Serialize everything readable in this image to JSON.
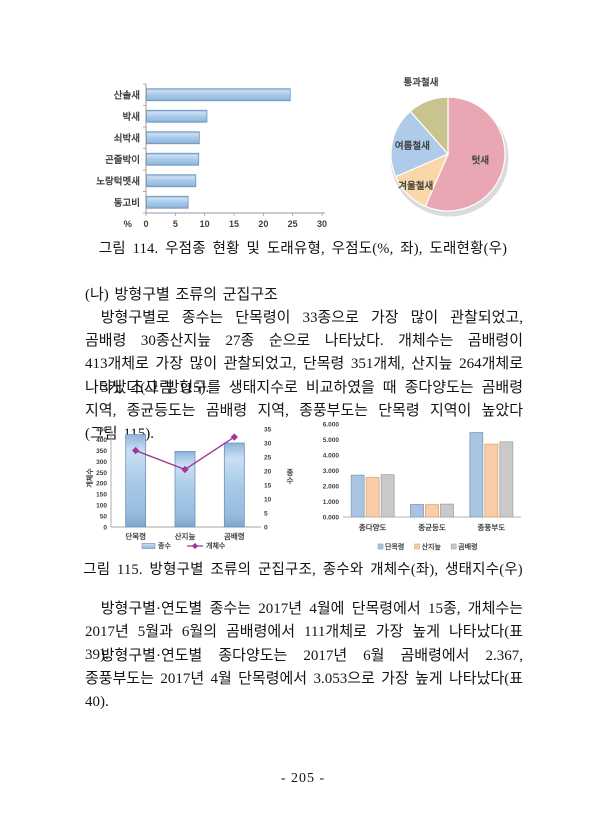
{
  "figure114": {
    "caption": "그림 114. 우점종 현황 및 도래유형, 우점도(%, 좌), 도래현황(우)"
  },
  "section": {
    "heading": "(나) 방형구별 조류의 군집구조",
    "para1": "방형구별로 종수는 단목령이 33종으로 가장 많이 관찰되었고, 곰배령 30종산지늪 27종 순으로 나타났다. 개체수는 곰배령이 413개체로 가장 많이 관찰되었고, 단목령 351개체, 산지늪 264개체로 나타났다(그림 115).",
    "para2": "3개 조사 방형구를 생태지수로 비교하였을 때 종다양도는 곰배령 지역, 종균등도는 곰배령 지역, 종풍부도는 단목령 지역이 높았다(그림 115).",
    "para3": "방형구별·연도별 종수는 2017년 4월에 단목령에서 15종, 개체수는 2017년 5월과 6월의 곰배령에서 111개체로 가장 높게 나타났다(표 39).",
    "para4": "방형구별·연도별 종다양도는 2017년 6월 곰배령에서 2.367, 종풍부도는 2017년 4월 단목령에서 3.053으로 가장 높게 나타났다(표 40)."
  },
  "figure115": {
    "caption": "그림 115. 방형구별 조류의 군집구조, 종수와 개체수(좌), 생태지수(우)"
  },
  "page_number": "- 205 -",
  "chart_data": [
    {
      "id": "dominance-bar",
      "type": "bar",
      "orientation": "horizontal",
      "title": "우점도(%)",
      "categories": [
        "산솔새",
        "박새",
        "쇠박새",
        "곤줄박이",
        "노랑턱멧새",
        "동고비"
      ],
      "values": [
        24.5,
        10.3,
        9.0,
        8.9,
        8.4,
        7.1
      ],
      "xlabel": "%",
      "xlim": [
        0,
        30
      ],
      "xticks": [
        0,
        5,
        10,
        15,
        20,
        25,
        30
      ],
      "bar_color": "#a9cbe8",
      "bar_border": "#6e93ba"
    },
    {
      "id": "migration-pie",
      "type": "pie",
      "title": "도래현황",
      "labels": [
        "텃새",
        "겨울철새",
        "여름철새",
        "통과철새"
      ],
      "values": [
        56.5,
        12.0,
        20.0,
        11.5
      ],
      "colors": [
        "#e9a7b4",
        "#fad7a8",
        "#aecbe9",
        "#c9c48f"
      ],
      "start_at_top_clockwise": true
    },
    {
      "id": "community-combo",
      "type": "bar-line-combo",
      "title": "종수와 개체수",
      "categories": [
        "단목령",
        "산지늪",
        "곰배령"
      ],
      "series": [
        {
          "name": "종수",
          "type": "bar",
          "axis": "right",
          "values": [
            33,
            27,
            30
          ]
        },
        {
          "name": "개체수",
          "type": "line",
          "axis": "left",
          "values": [
            351,
            264,
            413
          ]
        }
      ],
      "left_axis": {
        "label": "개체수",
        "min": 0,
        "max": 450,
        "step": 50
      },
      "right_axis": {
        "label": "종수",
        "min": 0,
        "max": 35,
        "step": 5
      },
      "bar_color": "#a9cbe8",
      "bar_border": "#6e93ba",
      "line_color": "#a03896"
    },
    {
      "id": "eco-index-grouped",
      "type": "bar",
      "title": "생태지수",
      "categories": [
        "종다양도",
        "종균등도",
        "종풍부도"
      ],
      "series": [
        {
          "name": "단목령",
          "color": "#aac3e0",
          "border": "#7f9fc4",
          "values": [
            2.7,
            0.81,
            5.45
          ]
        },
        {
          "name": "산지늪",
          "color": "#f8cda6",
          "border": "#d9a978",
          "values": [
            2.56,
            0.8,
            4.7
          ]
        },
        {
          "name": "곰배령",
          "color": "#c9c9c9",
          "border": "#a3a3a3",
          "values": [
            2.73,
            0.83,
            4.85
          ]
        }
      ],
      "ylim": [
        0,
        6
      ],
      "ytick_step": 1,
      "ytick_format": "3dp",
      "legend_position": "bottom"
    }
  ]
}
